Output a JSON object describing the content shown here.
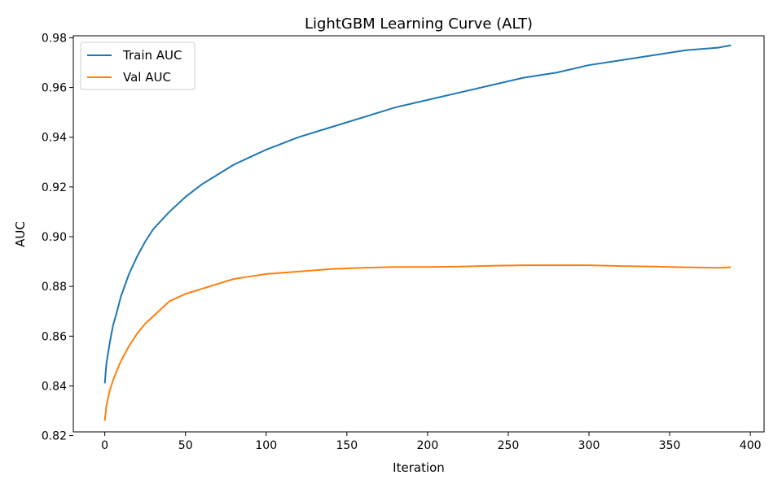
{
  "chart_data": {
    "type": "line",
    "title": "LightGBM Learning Curve (ALT)",
    "xlabel": "Iteration",
    "ylabel": "AUC",
    "xlim": [
      -19.5,
      408.5
    ],
    "ylim": [
      0.8215,
      0.9808
    ],
    "xticks": [
      0,
      50,
      100,
      150,
      200,
      250,
      300,
      350,
      400
    ],
    "yticks": [
      0.82,
      0.84,
      0.86,
      0.88,
      0.9,
      0.92,
      0.94,
      0.96,
      0.98
    ],
    "grid": false,
    "legend_position": "top-left",
    "series": [
      {
        "name": "Train AUC",
        "color": "#1f77b4",
        "x": [
          0,
          1,
          2,
          3,
          5,
          8,
          10,
          15,
          20,
          25,
          30,
          40,
          50,
          60,
          70,
          80,
          90,
          100,
          120,
          140,
          160,
          180,
          200,
          220,
          240,
          260,
          280,
          300,
          320,
          340,
          360,
          380,
          388
        ],
        "y": [
          0.841,
          0.849,
          0.853,
          0.857,
          0.864,
          0.871,
          0.876,
          0.885,
          0.892,
          0.898,
          0.903,
          0.91,
          0.916,
          0.921,
          0.925,
          0.929,
          0.932,
          0.935,
          0.94,
          0.944,
          0.948,
          0.952,
          0.955,
          0.958,
          0.961,
          0.964,
          0.966,
          0.969,
          0.971,
          0.973,
          0.975,
          0.976,
          0.977
        ]
      },
      {
        "name": "Val AUC",
        "color": "#ff7f0e",
        "x": [
          0,
          1,
          2,
          3,
          5,
          8,
          10,
          15,
          20,
          25,
          30,
          40,
          50,
          60,
          70,
          80,
          90,
          100,
          120,
          140,
          160,
          180,
          200,
          220,
          240,
          260,
          280,
          300,
          320,
          340,
          360,
          380,
          388
        ],
        "y": [
          0.826,
          0.832,
          0.835,
          0.838,
          0.842,
          0.847,
          0.85,
          0.856,
          0.861,
          0.865,
          0.868,
          0.874,
          0.877,
          0.879,
          0.881,
          0.883,
          0.884,
          0.885,
          0.886,
          0.887,
          0.8875,
          0.8878,
          0.8878,
          0.888,
          0.8883,
          0.8885,
          0.8885,
          0.8885,
          0.8882,
          0.888,
          0.8877,
          0.8875,
          0.8877
        ]
      }
    ]
  }
}
